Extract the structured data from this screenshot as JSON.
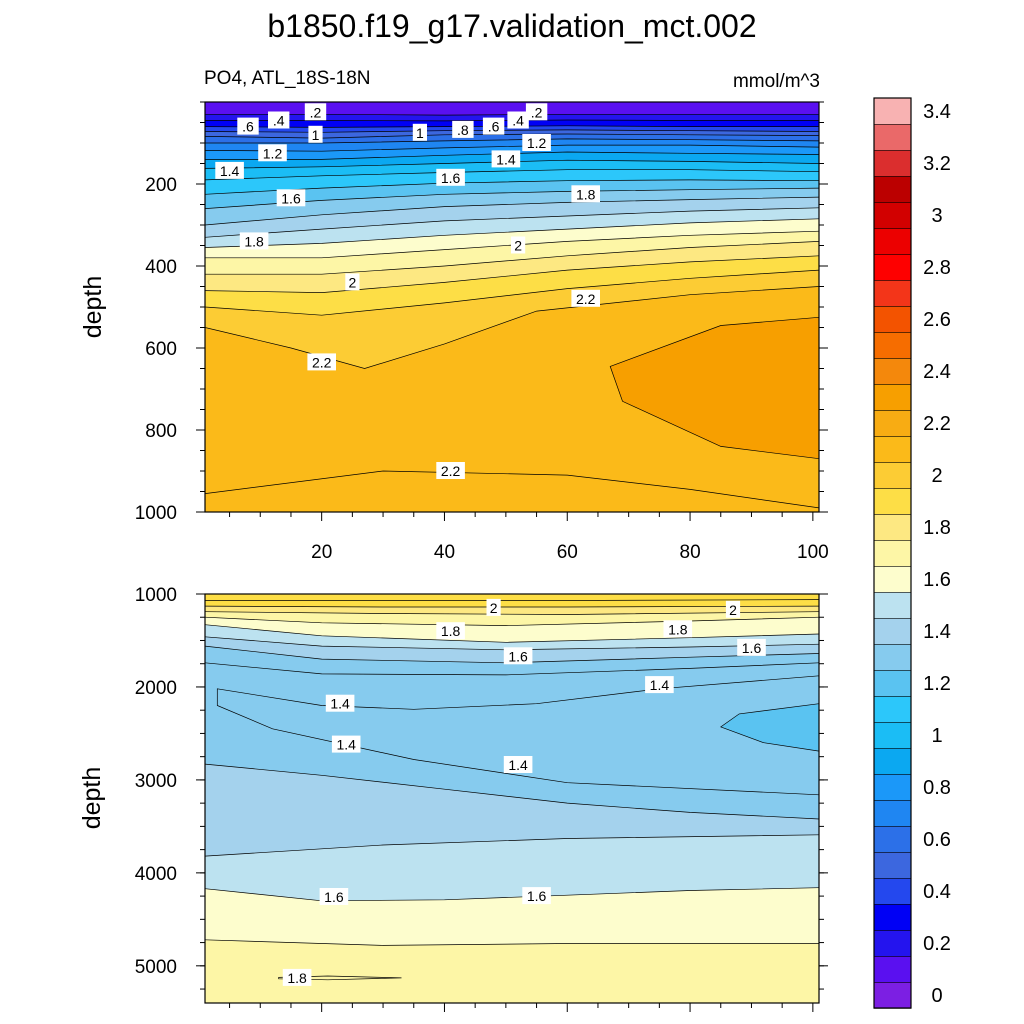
{
  "chart_data": {
    "type": "contour",
    "title": "b1850.f19_g17.validation_mct.002",
    "variable": "PO4, ATL_18S-18N",
    "units": "mmol/m^3",
    "colors": [
      "#7c1fe3",
      "#5a10f0",
      "#2414ee",
      "#0000f5",
      "#2448ee",
      "#3c67df",
      "#2c70e8",
      "#1f86f2",
      "#1b98f9",
      "#0ba8f1",
      "#1bbdf5",
      "#2cc7fa",
      "#5ac3f1",
      "#86cbee",
      "#a4d2ed",
      "#bce2f0",
      "#fdfdcd",
      "#fdf6a6",
      "#fde882",
      "#fdde46",
      "#fccc34",
      "#fbba19",
      "#f8ac13",
      "#f79f00",
      "#f4880c",
      "#f66d00",
      "#f35300",
      "#f33519",
      "#fe0000",
      "#ec0000",
      "#d20000",
      "#bb0000",
      "#db2e2e",
      "#ea6969",
      "#f8b2b2"
    ],
    "colorbar": {
      "labels": [
        "0",
        "0.2",
        "0.4",
        "0.6",
        "0.8",
        "1",
        "1.2",
        "1.4",
        "1.6",
        "1.8",
        "2",
        "2.2",
        "2.4",
        "2.6",
        "2.8",
        "3",
        "3.2",
        "3.4"
      ]
    },
    "panels": [
      {
        "name": "upper",
        "ylabel": "depth",
        "xlim": [
          1,
          101
        ],
        "ylim": [
          1000,
          0
        ],
        "x_ticks": [
          "20",
          "40",
          "60",
          "80",
          "100"
        ],
        "x_tick_values": [
          20,
          40,
          60,
          80,
          100
        ],
        "y_ticks": [
          "200",
          "400",
          "600",
          "800",
          "1000"
        ],
        "y_tick_values": [
          200,
          400,
          600,
          800,
          1000
        ],
        "contour_labels": [
          {
            "text": ".2",
            "x": 19,
            "depth": 25
          },
          {
            "text": ".4",
            "x": 13,
            "depth": 45
          },
          {
            "text": ".6",
            "x": 8,
            "depth": 60
          },
          {
            "text": "1",
            "x": 19,
            "depth": 80
          },
          {
            "text": "1.2",
            "x": 12,
            "depth": 125
          },
          {
            "text": "1.4",
            "x": 5,
            "depth": 168
          },
          {
            "text": "1.6",
            "x": 15,
            "depth": 235
          },
          {
            "text": "1.8",
            "x": 9,
            "depth": 340
          },
          {
            "text": "2",
            "x": 25,
            "depth": 440
          },
          {
            "text": "2.2",
            "x": 20,
            "depth": 635
          },
          {
            "text": ".2",
            "x": 55,
            "depth": 25
          },
          {
            "text": ".4",
            "x": 52,
            "depth": 45
          },
          {
            "text": ".6",
            "x": 48,
            "depth": 60
          },
          {
            "text": ".8",
            "x": 43,
            "depth": 68
          },
          {
            "text": "1",
            "x": 36,
            "depth": 75
          },
          {
            "text": "1.2",
            "x": 55,
            "depth": 100
          },
          {
            "text": "1.4",
            "x": 50,
            "depth": 140
          },
          {
            "text": "1.6",
            "x": 41,
            "depth": 185
          },
          {
            "text": "1.8",
            "x": 63,
            "depth": 225
          },
          {
            "text": "2",
            "x": 52,
            "depth": 350
          },
          {
            "text": "2.2",
            "x": 63,
            "depth": 480
          },
          {
            "text": "2.2",
            "x": 41,
            "depth": 900
          }
        ],
        "isolines": [
          {
            "x": [
              1,
              20,
              40,
              60,
              80,
              101
            ],
            "depth": [
              30,
              30,
              32,
              30,
              30,
              30
            ]
          },
          {
            "x": [
              1,
              20,
              40,
              60,
              80,
              101
            ],
            "depth": [
              45,
              45,
              46,
              44,
              45,
              45
            ]
          },
          {
            "x": [
              1,
              20,
              40,
              60,
              80,
              101
            ],
            "depth": [
              60,
              62,
              60,
              58,
              60,
              60
            ]
          },
          {
            "x": [
              1,
              20,
              40,
              60,
              80,
              101
            ],
            "depth": [
              72,
              74,
              70,
              68,
              70,
              72
            ]
          },
          {
            "x": [
              1,
              20,
              40,
              60,
              80,
              101
            ],
            "depth": [
              84,
              88,
              80,
              78,
              80,
              82
            ]
          },
          {
            "x": [
              1,
              20,
              40,
              60,
              80,
              101
            ],
            "depth": [
              100,
              100,
              95,
              90,
              92,
              95
            ]
          },
          {
            "x": [
              1,
              20,
              40,
              60,
              80,
              101
            ],
            "depth": [
              118,
              120,
              112,
              105,
              105,
              110
            ]
          },
          {
            "x": [
              1,
              20,
              40,
              60,
              80,
              101
            ],
            "depth": [
              140,
              140,
              130,
              122,
              125,
              128
            ]
          },
          {
            "x": [
              1,
              20,
              40,
              60,
              80,
              101
            ],
            "depth": [
              162,
              158,
              150,
              142,
              145,
              150
            ]
          },
          {
            "x": [
              1,
              20,
              40,
              60,
              80,
              101
            ],
            "depth": [
              190,
              180,
              172,
              165,
              165,
              170
            ]
          },
          {
            "x": [
              1,
              20,
              40,
              60,
              80,
              101
            ],
            "depth": [
              225,
              210,
              198,
              192,
              190,
              192
            ]
          },
          {
            "x": [
              1,
              20,
              40,
              60,
              80,
              101
            ],
            "depth": [
              260,
              240,
              225,
              218,
              214,
              210
            ]
          },
          {
            "x": [
              1,
              20,
              40,
              60,
              80,
              101
            ],
            "depth": [
              300,
              275,
              255,
              245,
              238,
              232
            ]
          },
          {
            "x": [
              1,
              20,
              40,
              60,
              80,
              101
            ],
            "depth": [
              330,
              310,
              290,
              278,
              266,
              258
            ]
          },
          {
            "x": [
              1,
              20,
              40,
              60,
              80,
              101
            ],
            "depth": [
              355,
              345,
              325,
              310,
              295,
              285
            ]
          },
          {
            "x": [
              1,
              20,
              40,
              60,
              80,
              101
            ],
            "depth": [
              380,
              380,
              360,
              340,
              325,
              315
            ]
          },
          {
            "x": [
              1,
              20,
              40,
              60,
              80,
              101
            ],
            "depth": [
              420,
              420,
              400,
              375,
              355,
              340
            ]
          },
          {
            "x": [
              1,
              20,
              40,
              60,
              80,
              101
            ],
            "depth": [
              460,
              465,
              440,
              410,
              390,
              375
            ]
          },
          {
            "x": [
              1,
              20,
              40,
              60,
              80,
              101
            ],
            "depth": [
              500,
              520,
              490,
              455,
              430,
              410
            ]
          },
          {
            "x": [
              1,
              15,
              27,
              40,
              55,
              80,
              101
            ],
            "depth": [
              550,
              600,
              650,
              590,
              510,
              470,
              450
            ]
          },
          {
            "x": [
              1,
              30,
              60,
              80,
              101
            ],
            "depth": [
              955,
              900,
              910,
              945,
              990
            ]
          }
        ],
        "closed_contours": [
          {
            "level": "2.4",
            "x": [
              101,
              85,
              67,
              69,
              85,
              101
            ],
            "depth": [
              525,
              545,
              645,
              730,
              840,
              870
            ]
          }
        ],
        "shading": {
          "pre": "2.2",
          "cores": [
            "2.4"
          ]
        }
      },
      {
        "name": "lower",
        "ylabel": "depth",
        "xlim": [
          1,
          101
        ],
        "ylim": [
          5400,
          1000
        ],
        "x_ticks": [],
        "x_tick_values": [
          20,
          40,
          60,
          80,
          100
        ],
        "y_ticks": [
          "1000",
          "2000",
          "3000",
          "4000",
          "5000"
        ],
        "y_tick_values": [
          1000,
          2000,
          3000,
          4000,
          5000
        ],
        "contour_labels": [
          {
            "text": "2",
            "x": 48,
            "depth": 1150
          },
          {
            "text": "2",
            "x": 87,
            "depth": 1170
          },
          {
            "text": "1.8",
            "x": 41,
            "depth": 1400
          },
          {
            "text": "1.8",
            "x": 78,
            "depth": 1380
          },
          {
            "text": "1.6",
            "x": 52,
            "depth": 1670
          },
          {
            "text": "1.6",
            "x": 90,
            "depth": 1580
          },
          {
            "text": "1.4",
            "x": 23,
            "depth": 2180
          },
          {
            "text": "1.4",
            "x": 75,
            "depth": 1980
          },
          {
            "text": "1.4",
            "x": 24,
            "depth": 2620
          },
          {
            "text": "1.4",
            "x": 52,
            "depth": 2840
          },
          {
            "text": "1.6",
            "x": 22,
            "depth": 4260
          },
          {
            "text": "1.6",
            "x": 55,
            "depth": 4250
          },
          {
            "text": "1.8",
            "x": 16,
            "depth": 5130
          }
        ],
        "isolines": [
          {
            "x": [
              1,
              30,
              60,
              101
            ],
            "depth": [
              1070,
              1070,
              1070,
              1060
            ]
          },
          {
            "x": [
              1,
              30,
              60,
              101
            ],
            "depth": [
              1130,
              1140,
              1140,
              1130
            ]
          },
          {
            "x": [
              1,
              30,
              60,
              101
            ],
            "depth": [
              1190,
              1210,
              1220,
              1190
            ]
          },
          {
            "x": [
              1,
              20,
              50,
              80,
              101
            ],
            "depth": [
              1250,
              1310,
              1340,
              1290,
              1250
            ]
          },
          {
            "x": [
              1,
              20,
              50,
              80,
              101
            ],
            "depth": [
              1330,
              1450,
              1520,
              1470,
              1430
            ]
          },
          {
            "x": [
              1,
              20,
              50,
              80,
              101
            ],
            "depth": [
              1460,
              1560,
              1600,
              1570,
              1540
            ]
          },
          {
            "x": [
              1,
              20,
              50,
              80,
              101
            ],
            "depth": [
              1560,
              1700,
              1740,
              1680,
              1640
            ]
          },
          {
            "x": [
              1,
              20,
              50,
              80,
              101
            ],
            "depth": [
              1740,
              1860,
              1870,
              1800,
              1740
            ]
          },
          {
            "x": [
              1,
              20,
              40,
              60,
              80,
              101
            ],
            "depth": [
              2830,
              2950,
              3100,
              3250,
              3350,
              3420
            ]
          },
          {
            "x": [
              1,
              30,
              60,
              101
            ],
            "depth": [
              3820,
              3700,
              3630,
              3590
            ]
          },
          {
            "x": [
              1,
              20,
              40,
              60,
              80,
              101
            ],
            "depth": [
              4170,
              4300,
              4290,
              4240,
              4190,
              4160
            ]
          },
          {
            "x": [
              1,
              30,
              60,
              101
            ],
            "depth": [
              4720,
              4780,
              4760,
              4760
            ]
          }
        ],
        "closed_contours": [
          {
            "level": "1.4",
            "x": [
              3,
              20,
              35,
              55,
              75,
              101,
              101,
              60,
              35,
              12,
              3
            ],
            "depth": [
              2020,
              2200,
              2240,
              2180,
              2020,
              1880,
              3160,
              3030,
              2780,
              2450,
              2200
            ]
          },
          {
            "level": "1.2",
            "x": [
              101,
              88,
              85,
              92,
              101
            ],
            "depth": [
              2180,
              2290,
              2430,
              2600,
              2690
            ]
          },
          {
            "level": "1.8",
            "x": [
              13,
              21,
              33,
              21,
              13
            ],
            "depth": [
              5125,
              5110,
              5130,
              5150,
              5140
            ]
          }
        ],
        "shading": {
          "pre": "1.4",
          "cores": [
            "1.2",
            "1.8"
          ]
        }
      }
    ]
  }
}
